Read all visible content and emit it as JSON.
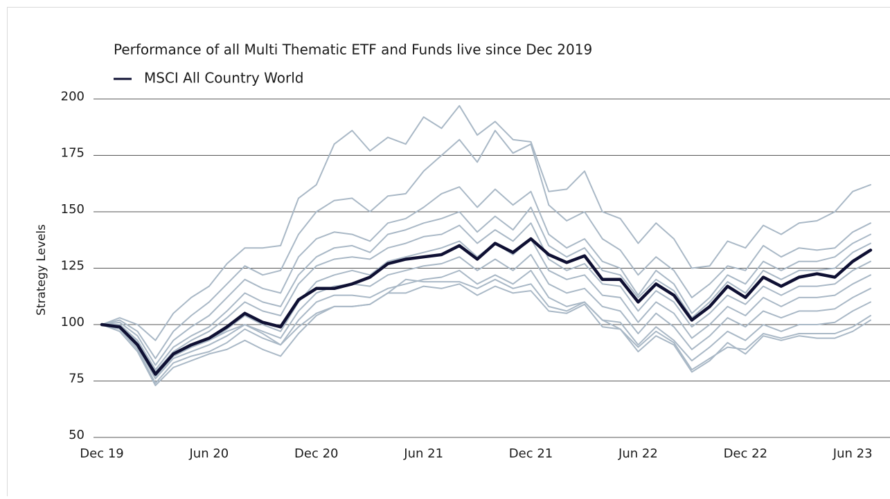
{
  "chart_data": {
    "type": "line",
    "title": "Performance of all Multi Thematic ETF and Funds live since Dec 2019",
    "y_label": "Strategy Levels",
    "categories": [
      "Dec 19",
      null,
      null,
      null,
      null,
      null,
      "Jun 20",
      null,
      null,
      null,
      null,
      null,
      "Dec 20",
      null,
      null,
      null,
      null,
      null,
      "Jun 21",
      null,
      null,
      null,
      null,
      null,
      "Dec 21",
      null,
      null,
      null,
      null,
      null,
      "Jun 22",
      null,
      null,
      null,
      null,
      null,
      "Dec 22",
      null,
      null,
      null,
      null,
      null,
      "Jun 23",
      null
    ],
    "ylim": [
      50,
      200
    ],
    "yticks": [
      50,
      75,
      100,
      125,
      150,
      175,
      200
    ],
    "grid": true,
    "series": [
      {
        "color": "#a9b8c6",
        "values": [
          100,
          103,
          100,
          93,
          105,
          112,
          117,
          127,
          134,
          134,
          135,
          156,
          162,
          180,
          186,
          177,
          183,
          180,
          192,
          187,
          197,
          184,
          190,
          182,
          181,
          159,
          160,
          168,
          150,
          147,
          136,
          145,
          138,
          125,
          126,
          137,
          134,
          144,
          140,
          145,
          146,
          150,
          159,
          162
        ]
      },
      {
        "color": "#a9b8c6",
        "values": [
          100,
          102,
          97,
          85,
          97,
          104,
          110,
          118,
          126,
          122,
          124,
          140,
          150,
          155,
          156,
          150,
          157,
          158,
          168,
          175,
          182,
          172,
          186,
          176,
          180,
          153,
          146,
          150,
          138,
          133,
          122,
          130,
          124,
          112,
          118,
          126,
          124,
          135,
          130,
          134,
          133,
          134,
          141,
          145
        ]
      },
      {
        "color": "#a9b8c6",
        "values": [
          100,
          101,
          95,
          82,
          93,
          99,
          104,
          112,
          120,
          116,
          114,
          130,
          138,
          141,
          140,
          137,
          145,
          147,
          152,
          158,
          161,
          152,
          160,
          153,
          159,
          140,
          134,
          138,
          128,
          125,
          113,
          124,
          118,
          105,
          112,
          122,
          118,
          128,
          124,
          128,
          128,
          130,
          136,
          140
        ]
      },
      {
        "color": "#a9b8c6",
        "values": [
          100,
          100,
          93,
          80,
          90,
          95,
          99,
          106,
          114,
          110,
          108,
          122,
          130,
          134,
          135,
          132,
          140,
          142,
          145,
          147,
          150,
          141,
          148,
          142,
          152,
          135,
          130,
          134,
          124,
          122,
          112,
          120,
          115,
          103,
          110,
          119,
          114,
          124,
          120,
          124,
          124,
          125,
          132,
          136
        ]
      },
      {
        "color": "#a9b8c6",
        "values": [
          100,
          100,
          92,
          79,
          88,
          93,
          97,
          103,
          110,
          106,
          104,
          118,
          126,
          129,
          130,
          129,
          134,
          136,
          139,
          140,
          144,
          136,
          142,
          137,
          145,
          129,
          124,
          127,
          118,
          117,
          106,
          115,
          110,
          99,
          105,
          113,
          109,
          117,
          113,
          117,
          117,
          118,
          124,
          128
        ]
      },
      {
        "color": "#a9b8c6",
        "values": [
          100,
          99,
          90,
          77,
          86,
          90,
          93,
          98,
          104,
          100,
          97,
          110,
          119,
          122,
          124,
          122,
          128,
          130,
          132,
          134,
          137,
          130,
          136,
          131,
          138,
          124,
          120,
          122,
          113,
          112,
          101,
          110,
          105,
          94,
          100,
          108,
          104,
          112,
          108,
          112,
          112,
          113,
          118,
          122
        ]
      },
      {
        "color": "#a9b8c6",
        "values": [
          100,
          99,
          90,
          76,
          85,
          88,
          91,
          95,
          100,
          97,
          94,
          106,
          114,
          117,
          118,
          117,
          122,
          124,
          126,
          127,
          130,
          124,
          129,
          124,
          131,
          118,
          114,
          116,
          108,
          106,
          96,
          105,
          99,
          89,
          95,
          103,
          99,
          106,
          103,
          106,
          106,
          107,
          112,
          116
        ]
      },
      {
        "color": "#a9b8c6",
        "values": [
          100,
          98,
          89,
          74,
          83,
          86,
          88,
          92,
          98,
          94,
          91,
          102,
          110,
          113,
          113,
          112,
          116,
          118,
          120,
          121,
          124,
          118,
          122,
          118,
          124,
          112,
          108,
          110,
          102,
          101,
          91,
          99,
          93,
          84,
          90,
          97,
          93,
          100,
          97,
          100,
          100,
          101,
          106,
          110
        ]
      },
      {
        "color": "#a9b8c6",
        "values": [
          100,
          97,
          88,
          73,
          81,
          84,
          87,
          89,
          93,
          89,
          86,
          96,
          104,
          108,
          108,
          109,
          114,
          114,
          117,
          116,
          118,
          113,
          117,
          114,
          115,
          106,
          105,
          109,
          99,
          98,
          88,
          95,
          91,
          79,
          84,
          92,
          87,
          95,
          93,
          95,
          94,
          94,
          97,
          102
        ]
      },
      {
        "color": "#a9b8c6",
        "values": [
          100,
          99,
          91,
          78,
          86,
          90,
          93,
          97,
          100,
          96,
          91,
          99,
          105,
          108,
          108,
          109,
          114,
          120,
          119,
          119,
          119,
          116,
          120,
          116,
          118,
          108,
          106,
          110,
          102,
          98,
          90,
          97,
          92,
          80,
          85,
          90,
          89,
          96,
          94,
          96,
          96,
          96,
          99,
          104
        ]
      },
      {
        "name": "MSCI All Country World",
        "color": "#0f1033",
        "values": [
          100,
          99,
          91,
          78,
          87,
          91,
          94,
          99,
          105,
          101,
          99,
          111,
          116,
          116,
          118,
          121,
          127,
          129,
          130,
          131,
          135,
          129,
          136,
          132,
          138,
          131,
          127.5,
          130.5,
          120,
          120,
          110,
          118,
          113,
          102,
          108,
          117,
          112,
          121,
          117,
          121,
          122.5,
          121,
          128,
          133
        ]
      }
    ]
  }
}
